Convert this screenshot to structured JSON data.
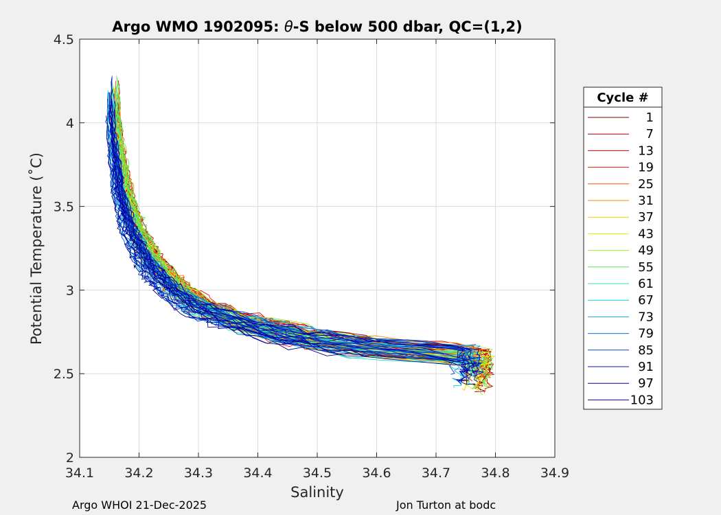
{
  "chart_data": {
    "type": "line",
    "title_prefix": "Argo WMO 1902095: ",
    "title_theta": "θ",
    "title_suffix": "-S below 500 dbar,  QC=(1,2)",
    "xlabel": "Salinity",
    "ylabel": "Potential Temperature (˚C)",
    "xlim": [
      34.1,
      34.9
    ],
    "ylim": [
      2,
      4.5
    ],
    "xticks": [
      "34.1",
      "34.2",
      "34.3",
      "34.4",
      "34.5",
      "34.6",
      "34.7",
      "34.8",
      "34.9"
    ],
    "yticks": [
      "2",
      "2.5",
      "3",
      "3.5",
      "4",
      "4.5"
    ],
    "grid": true,
    "legend_title": "Cycle #",
    "legend_position": "right",
    "legend_entries": [
      "1",
      "7",
      "13",
      "19",
      "25",
      "31",
      "37",
      "43",
      "49",
      "55",
      "61",
      "67",
      "73",
      "79",
      "85",
      "91",
      "97",
      "103"
    ],
    "colors": [
      "#800000",
      "#a60000",
      "#cc0000",
      "#e61a00",
      "#ff5500",
      "#ff8c00",
      "#ffcc00",
      "#e6f000",
      "#a6e62e",
      "#5ae65a",
      "#2ee6a6",
      "#14d2d2",
      "#14a6e6",
      "#0a6ee6",
      "#0046d2",
      "#0a1eb4",
      "#00008c",
      "#0000b4"
    ],
    "mean_curve": {
      "x": [
        34.155,
        34.16,
        34.17,
        34.19,
        34.22,
        34.26,
        34.3,
        34.35,
        34.4,
        34.46,
        34.52,
        34.58,
        34.64,
        34.7,
        34.76
      ],
      "y": [
        4.05,
        3.85,
        3.6,
        3.35,
        3.15,
        3.0,
        2.9,
        2.83,
        2.78,
        2.73,
        2.69,
        2.66,
        2.64,
        2.625,
        2.615
      ]
    }
  },
  "footer": {
    "left": "Argo WHOI 21-Dec-2025",
    "right": "Jon Turton at bodc"
  }
}
